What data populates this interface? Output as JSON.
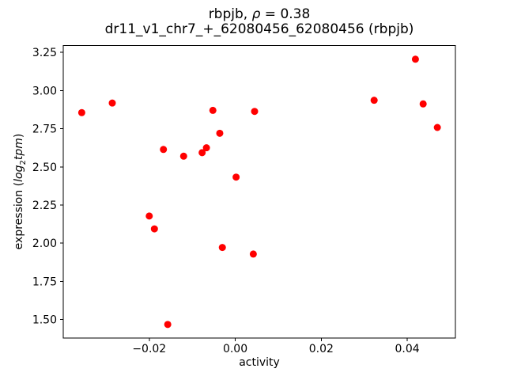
{
  "title": {
    "prefix": "rbpjb, ",
    "rho": "ρ",
    "rest": " = 0.38",
    "subtitle": "dr11_v1_chr7_+_62080456_62080456 (rbpjb)"
  },
  "axes": {
    "xlabel": "activity",
    "ylabel_prefix": "expression (",
    "ylabel_log": "log",
    "ylabel_sub": "2",
    "ylabel_tpm": "tpm",
    "ylabel_suffix": ")"
  },
  "chart_data": {
    "type": "scatter",
    "title": "rbpjb, ρ = 0.38",
    "subtitle": "dr11_v1_chr7_+_62080456_62080456 (rbpjb)",
    "xlabel": "activity",
    "ylabel": "expression (log2tpm)",
    "marker_shape": "circle",
    "marker_color": "#ff0000",
    "marker_diameter_px": 9,
    "axis_color": "#000000",
    "grid": false,
    "legend": "none",
    "xlim": [
      -0.04,
      0.0512
    ],
    "ylim": [
      1.378,
      3.294
    ],
    "x_ticks": [
      -0.02,
      0.0,
      0.02,
      0.04
    ],
    "x_tick_labels": [
      "−0.02",
      "0.00",
      "0.02",
      "0.04"
    ],
    "y_ticks": [
      1.5,
      1.75,
      2.0,
      2.25,
      2.5,
      2.75,
      3.0,
      3.25
    ],
    "y_tick_labels": [
      "1.50",
      "1.75",
      "2.00",
      "2.25",
      "2.50",
      "2.75",
      "3.00",
      "3.25"
    ],
    "points": [
      [
        -0.0357,
        2.855
      ],
      [
        -0.0286,
        2.918
      ],
      [
        -0.02,
        2.178
      ],
      [
        -0.0188,
        2.094
      ],
      [
        -0.0167,
        2.614
      ],
      [
        -0.0157,
        1.468
      ],
      [
        -0.012,
        2.57
      ],
      [
        -0.0077,
        2.593
      ],
      [
        -0.0067,
        2.625
      ],
      [
        -0.0052,
        2.87
      ],
      [
        -0.0036,
        2.72
      ],
      [
        -0.003,
        1.972
      ],
      [
        0.0002,
        2.433
      ],
      [
        0.0042,
        1.929
      ],
      [
        0.0045,
        2.863
      ],
      [
        0.0323,
        2.936
      ],
      [
        0.0419,
        3.205
      ],
      [
        0.0437,
        2.912
      ],
      [
        0.047,
        2.758
      ]
    ]
  }
}
